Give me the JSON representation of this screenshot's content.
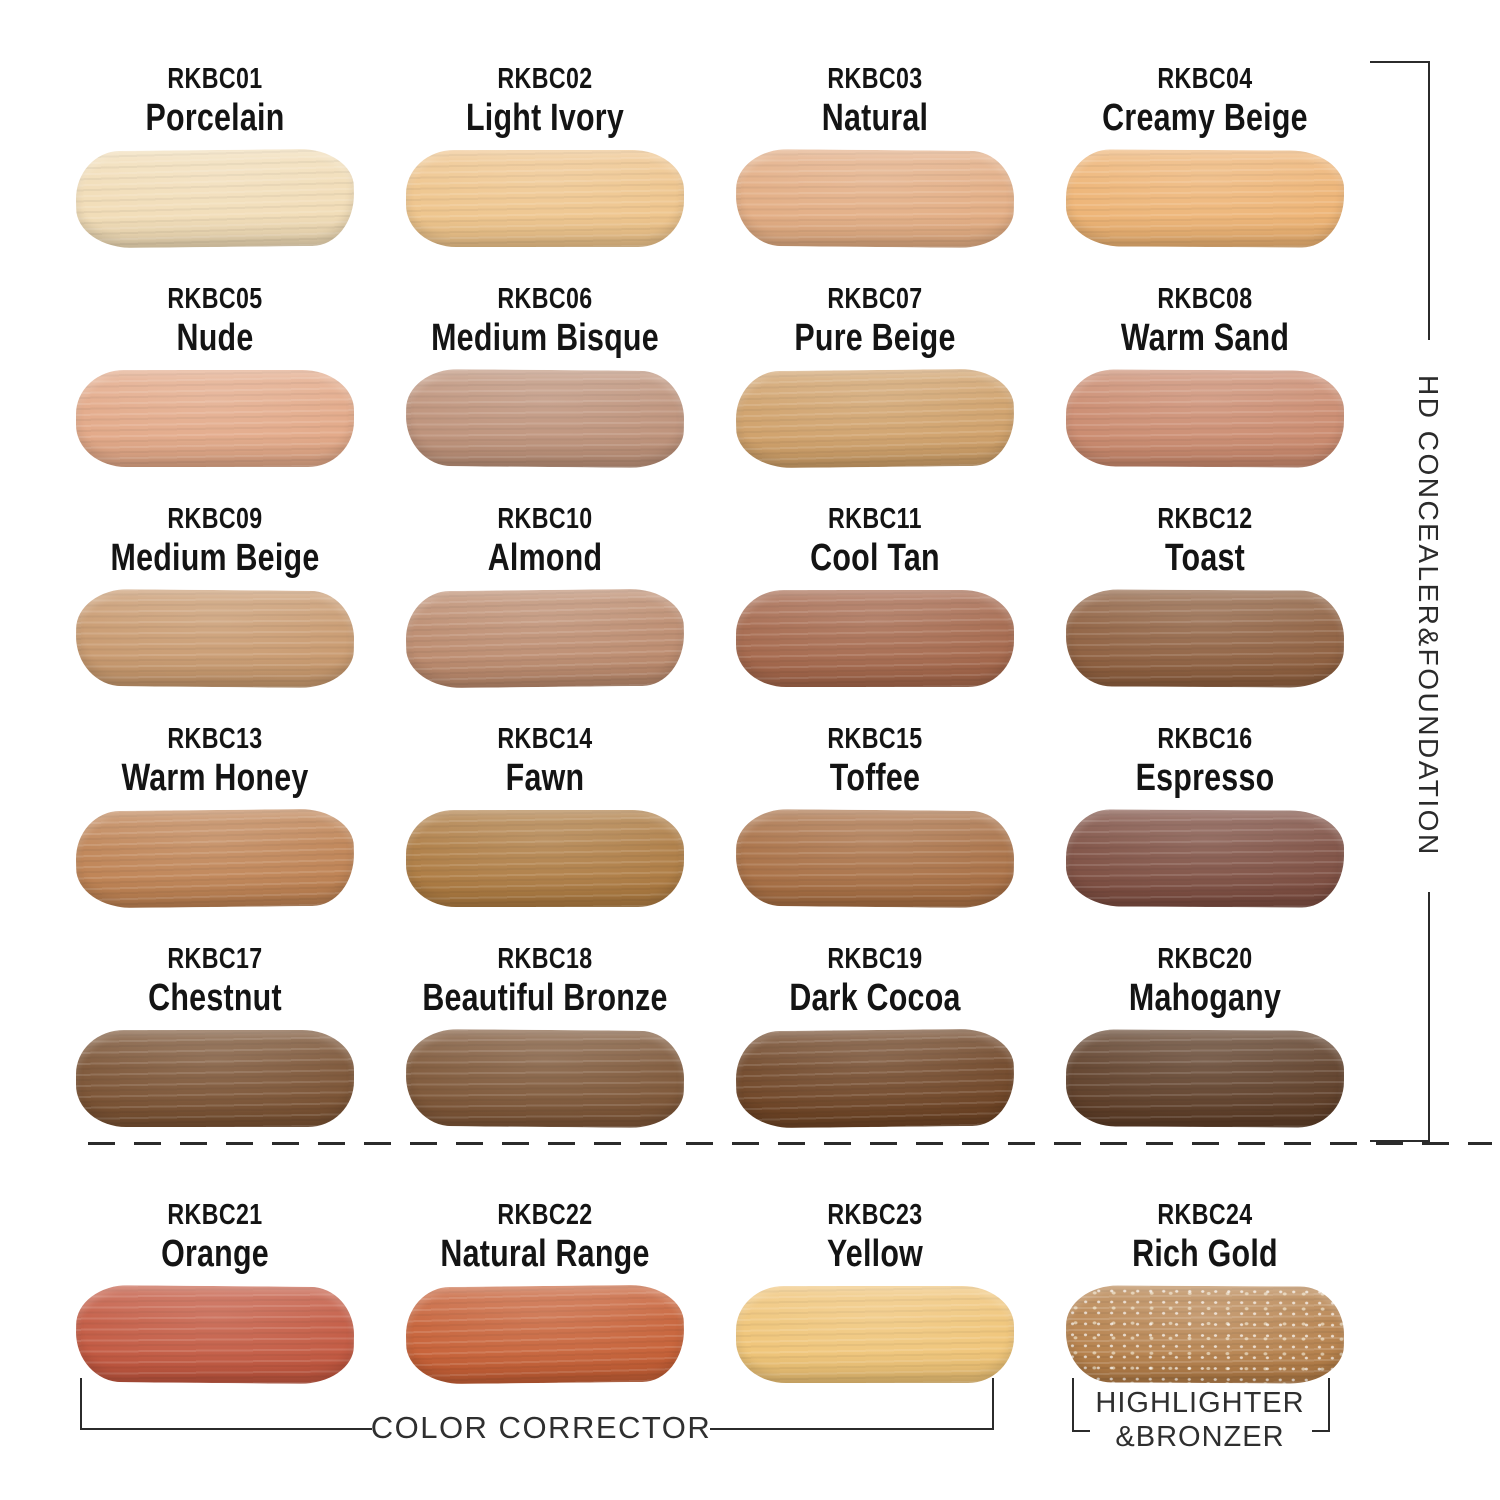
{
  "page": {
    "background": "#ffffff",
    "line_color": "#2b2b2b",
    "text_color": "#141414"
  },
  "groups": {
    "hd_label": "HD CONCEALER&FOUNDATION",
    "color_corrector_label": "COLOR CORRECTOR",
    "highlighter_line1": "HIGHLIGHTER",
    "highlighter_line2": "&BRONZER"
  },
  "shades": [
    {
      "code": "RKBC01",
      "name": "Porcelain",
      "color": "#F1DCB6",
      "group": "HD CONCEALER&FOUNDATION"
    },
    {
      "code": "RKBC02",
      "name": "Light Ivory",
      "color": "#EEC48B",
      "group": "HD CONCEALER&FOUNDATION"
    },
    {
      "code": "RKBC03",
      "name": "Natural",
      "color": "#E2AC82",
      "group": "HD CONCEALER&FOUNDATION"
    },
    {
      "code": "RKBC04",
      "name": "Creamy Beige",
      "color": "#EDB374",
      "group": "HD CONCEALER&FOUNDATION"
    },
    {
      "code": "RKBC05",
      "name": "Nude",
      "color": "#E2A887",
      "group": "HD CONCEALER&FOUNDATION"
    },
    {
      "code": "RKBC06",
      "name": "Medium Bisque",
      "color": "#BD9179",
      "group": "HD CONCEALER&FOUNDATION"
    },
    {
      "code": "RKBC07",
      "name": "Pure Beige",
      "color": "#CFA069",
      "group": "HD CONCEALER&FOUNDATION"
    },
    {
      "code": "RKBC08",
      "name": "Warm Sand",
      "color": "#CA8A6E",
      "group": "HD CONCEALER&FOUNDATION"
    },
    {
      "code": "RKBC09",
      "name": "Medium Beige",
      "color": "#C8996E",
      "group": "HD CONCEALER&FOUNDATION"
    },
    {
      "code": "RKBC10",
      "name": "Almond",
      "color": "#BB8A6D",
      "group": "HD CONCEALER&FOUNDATION"
    },
    {
      "code": "RKBC11",
      "name": "Cool Tan",
      "color": "#A4674B",
      "group": "HD CONCEALER&FOUNDATION"
    },
    {
      "code": "RKBC12",
      "name": "Toast",
      "color": "#8E5F3F",
      "group": "HD CONCEALER&FOUNDATION"
    },
    {
      "code": "RKBC13",
      "name": "Warm Honey",
      "color": "#BE8253",
      "group": "HD CONCEALER&FOUNDATION"
    },
    {
      "code": "RKBC14",
      "name": "Fawn",
      "color": "#AD7B42",
      "group": "HD CONCEALER&FOUNDATION"
    },
    {
      "code": "RKBC15",
      "name": "Toffee",
      "color": "#A86F44",
      "group": "HD CONCEALER&FOUNDATION"
    },
    {
      "code": "RKBC16",
      "name": "Espresso",
      "color": "#7D4E41",
      "group": "HD CONCEALER&FOUNDATION"
    },
    {
      "code": "RKBC17",
      "name": "Chestnut",
      "color": "#7A5233",
      "group": "HD CONCEALER&FOUNDATION"
    },
    {
      "code": "RKBC18",
      "name": "Beautiful Bronze",
      "color": "#7D5637",
      "group": "HD CONCEALER&FOUNDATION"
    },
    {
      "code": "RKBC19",
      "name": "Dark Cocoa",
      "color": "#6F4526",
      "group": "HD CONCEALER&FOUNDATION"
    },
    {
      "code": "RKBC20",
      "name": "Mahogany",
      "color": "#5E3E28",
      "group": "HD CONCEALER&FOUNDATION"
    },
    {
      "code": "RKBC21",
      "name": "Orange",
      "color": "#C25840",
      "group": "COLOR CORRECTOR"
    },
    {
      "code": "RKBC22",
      "name": "Natural Range",
      "color": "#C66036",
      "group": "COLOR CORRECTOR"
    },
    {
      "code": "RKBC23",
      "name": "Yellow",
      "color": "#EFC477",
      "group": "COLOR CORRECTOR"
    },
    {
      "code": "RKBC24",
      "name": "Rich Gold",
      "color": "#B47E48",
      "group": "HIGHLIGHTER&BRONZER",
      "sparkle": true
    }
  ]
}
